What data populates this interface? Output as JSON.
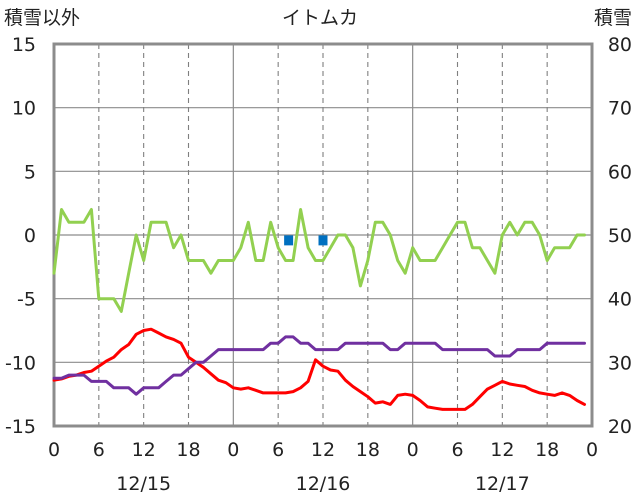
{
  "chart_data": {
    "type": "line",
    "title": "イトムカ",
    "ylabel_left": "積雪以外",
    "ylabel_right": "積雪",
    "ylim_left": [
      -15,
      15
    ],
    "ylim_right": [
      20,
      80
    ],
    "yticks_left": [
      "15",
      "10",
      "5",
      "0",
      "-5",
      "-10",
      "-15"
    ],
    "yticks_right": [
      "80",
      "70",
      "60",
      "50",
      "40",
      "30",
      "20"
    ],
    "xlim_hours": [
      0,
      72
    ],
    "xticks": [
      "0",
      "6",
      "12",
      "18",
      "0",
      "6",
      "12",
      "18",
      "0",
      "6",
      "12",
      "18",
      "0"
    ],
    "date_labels": [
      "12/15",
      "12/16",
      "12/17"
    ],
    "colors": {
      "frame": "#8c8c8c",
      "dashed_grid": "#7f7f7f",
      "green": "#92d050",
      "red": "#ff0000",
      "purple": "#7030a0",
      "blue": "#0070c0"
    },
    "series": [
      {
        "color": "#92d050",
        "axis": "left",
        "points": [
          [
            0,
            -3
          ],
          [
            1,
            2
          ],
          [
            2,
            1
          ],
          [
            3,
            1
          ],
          [
            4,
            1
          ],
          [
            5,
            2
          ],
          [
            6,
            -5
          ],
          [
            7,
            -5
          ],
          [
            8,
            -5
          ],
          [
            9,
            -6
          ],
          [
            10,
            -3
          ],
          [
            11,
            0
          ],
          [
            12,
            -2
          ],
          [
            13,
            1
          ],
          [
            14,
            1
          ],
          [
            15,
            1
          ],
          [
            16,
            -1
          ],
          [
            17,
            0
          ],
          [
            18,
            -2
          ],
          [
            19,
            -2
          ],
          [
            20,
            -2
          ],
          [
            21,
            -3
          ],
          [
            22,
            -2
          ],
          [
            23,
            -2
          ],
          [
            24,
            -2
          ],
          [
            25,
            -1
          ],
          [
            26,
            1
          ],
          [
            27,
            -2
          ],
          [
            28,
            -2
          ],
          [
            29,
            1
          ],
          [
            30,
            -1
          ],
          [
            31,
            -2
          ],
          [
            32,
            -2
          ],
          [
            33,
            2
          ],
          [
            34,
            -1
          ],
          [
            35,
            -2
          ],
          [
            36,
            -2
          ],
          [
            37,
            -1
          ],
          [
            38,
            0
          ],
          [
            39,
            0
          ],
          [
            40,
            -1
          ],
          [
            41,
            -4
          ],
          [
            42,
            -2
          ],
          [
            43,
            1
          ],
          [
            44,
            1
          ],
          [
            45,
            0
          ],
          [
            46,
            -2
          ],
          [
            47,
            -3
          ],
          [
            48,
            -1
          ],
          [
            49,
            -2
          ],
          [
            50,
            -2
          ],
          [
            51,
            -2
          ],
          [
            52,
            -1
          ],
          [
            53,
            0
          ],
          [
            54,
            1
          ],
          [
            55,
            1
          ],
          [
            56,
            -1
          ],
          [
            57,
            -1
          ],
          [
            58,
            -2
          ],
          [
            59,
            -3
          ],
          [
            60,
            0
          ],
          [
            61,
            1
          ],
          [
            62,
            0
          ],
          [
            63,
            1
          ],
          [
            64,
            1
          ],
          [
            65,
            0
          ],
          [
            66,
            -2
          ],
          [
            67,
            -1
          ],
          [
            68,
            -1
          ],
          [
            69,
            -1
          ],
          [
            70,
            0
          ],
          [
            71,
            0
          ]
        ]
      },
      {
        "color": "#ff0000",
        "axis": "left",
        "points": [
          [
            0,
            -11.4
          ],
          [
            1,
            -11.3
          ],
          [
            2,
            -11.1
          ],
          [
            3,
            -11
          ],
          [
            4,
            -10.8
          ],
          [
            5,
            -10.7
          ],
          [
            6,
            -10.3
          ],
          [
            7,
            -9.9
          ],
          [
            8,
            -9.6
          ],
          [
            9,
            -9
          ],
          [
            10,
            -8.6
          ],
          [
            11,
            -7.8
          ],
          [
            12,
            -7.5
          ],
          [
            13,
            -7.4
          ],
          [
            14,
            -7.7
          ],
          [
            15,
            -8
          ],
          [
            16,
            -8.2
          ],
          [
            17,
            -8.5
          ],
          [
            18,
            -9.6
          ],
          [
            19,
            -10
          ],
          [
            20,
            -10.4
          ],
          [
            21,
            -10.9
          ],
          [
            22,
            -11.4
          ],
          [
            23,
            -11.6
          ],
          [
            24,
            -12
          ],
          [
            25,
            -12.1
          ],
          [
            26,
            -12
          ],
          [
            27,
            -12.2
          ],
          [
            28,
            -12.4
          ],
          [
            29,
            -12.4
          ],
          [
            30,
            -12.4
          ],
          [
            31,
            -12.4
          ],
          [
            32,
            -12.3
          ],
          [
            33,
            -12
          ],
          [
            34,
            -11.5
          ],
          [
            35,
            -9.8
          ],
          [
            36,
            -10.3
          ],
          [
            37,
            -10.6
          ],
          [
            38,
            -10.7
          ],
          [
            39,
            -11.4
          ],
          [
            40,
            -11.9
          ],
          [
            41,
            -12.3
          ],
          [
            42,
            -12.7
          ],
          [
            43,
            -13.2
          ],
          [
            44,
            -13.1
          ],
          [
            45,
            -13.3
          ],
          [
            46,
            -12.6
          ],
          [
            47,
            -12.5
          ],
          [
            48,
            -12.6
          ],
          [
            49,
            -13
          ],
          [
            50,
            -13.5
          ],
          [
            51,
            -13.6
          ],
          [
            52,
            -13.7
          ],
          [
            53,
            -13.7
          ],
          [
            54,
            -13.7
          ],
          [
            55,
            -13.7
          ],
          [
            56,
            -13.3
          ],
          [
            57,
            -12.7
          ],
          [
            58,
            -12.1
          ],
          [
            59,
            -11.8
          ],
          [
            60,
            -11.5
          ],
          [
            61,
            -11.7
          ],
          [
            62,
            -11.8
          ],
          [
            63,
            -11.9
          ],
          [
            64,
            -12.2
          ],
          [
            65,
            -12.4
          ],
          [
            66,
            -12.5
          ],
          [
            67,
            -12.6
          ],
          [
            68,
            -12.4
          ],
          [
            69,
            -12.6
          ],
          [
            70,
            -13
          ],
          [
            71,
            -13.3
          ]
        ]
      },
      {
        "color": "#7030a0",
        "axis": "right",
        "points": [
          [
            0,
            27.5
          ],
          [
            1,
            27.5
          ],
          [
            2,
            28
          ],
          [
            3,
            28
          ],
          [
            4,
            28
          ],
          [
            5,
            27
          ],
          [
            6,
            27
          ],
          [
            7,
            27
          ],
          [
            8,
            26
          ],
          [
            9,
            26
          ],
          [
            10,
            26
          ],
          [
            11,
            25
          ],
          [
            12,
            26
          ],
          [
            13,
            26
          ],
          [
            14,
            26
          ],
          [
            15,
            27
          ],
          [
            16,
            28
          ],
          [
            17,
            28
          ],
          [
            18,
            29
          ],
          [
            19,
            30
          ],
          [
            20,
            30
          ],
          [
            21,
            31
          ],
          [
            22,
            32
          ],
          [
            23,
            32
          ],
          [
            24,
            32
          ],
          [
            25,
            32
          ],
          [
            26,
            32
          ],
          [
            27,
            32
          ],
          [
            28,
            32
          ],
          [
            29,
            33
          ],
          [
            30,
            33
          ],
          [
            31,
            34
          ],
          [
            32,
            34
          ],
          [
            33,
            33
          ],
          [
            34,
            33
          ],
          [
            35,
            32
          ],
          [
            36,
            32
          ],
          [
            37,
            32
          ],
          [
            38,
            32
          ],
          [
            39,
            33
          ],
          [
            40,
            33
          ],
          [
            41,
            33
          ],
          [
            42,
            33
          ],
          [
            43,
            33
          ],
          [
            44,
            33
          ],
          [
            45,
            32
          ],
          [
            46,
            32
          ],
          [
            47,
            33
          ],
          [
            48,
            33
          ],
          [
            49,
            33
          ],
          [
            50,
            33
          ],
          [
            51,
            33
          ],
          [
            52,
            32
          ],
          [
            53,
            32
          ],
          [
            54,
            32
          ],
          [
            55,
            32
          ],
          [
            56,
            32
          ],
          [
            57,
            32
          ],
          [
            58,
            32
          ],
          [
            59,
            31
          ],
          [
            60,
            31
          ],
          [
            61,
            31
          ],
          [
            62,
            32
          ],
          [
            63,
            32
          ],
          [
            64,
            32
          ],
          [
            65,
            32
          ],
          [
            66,
            33
          ],
          [
            67,
            33
          ],
          [
            68,
            33
          ],
          [
            69,
            33
          ],
          [
            70,
            33
          ],
          [
            71,
            33
          ]
        ]
      }
    ],
    "markers": [
      {
        "color": "#0070c0",
        "axis": "left",
        "x": 31.4,
        "y": -0.5
      },
      {
        "color": "#0070c0",
        "axis": "left",
        "x": 36,
        "y": -0.5
      }
    ]
  }
}
